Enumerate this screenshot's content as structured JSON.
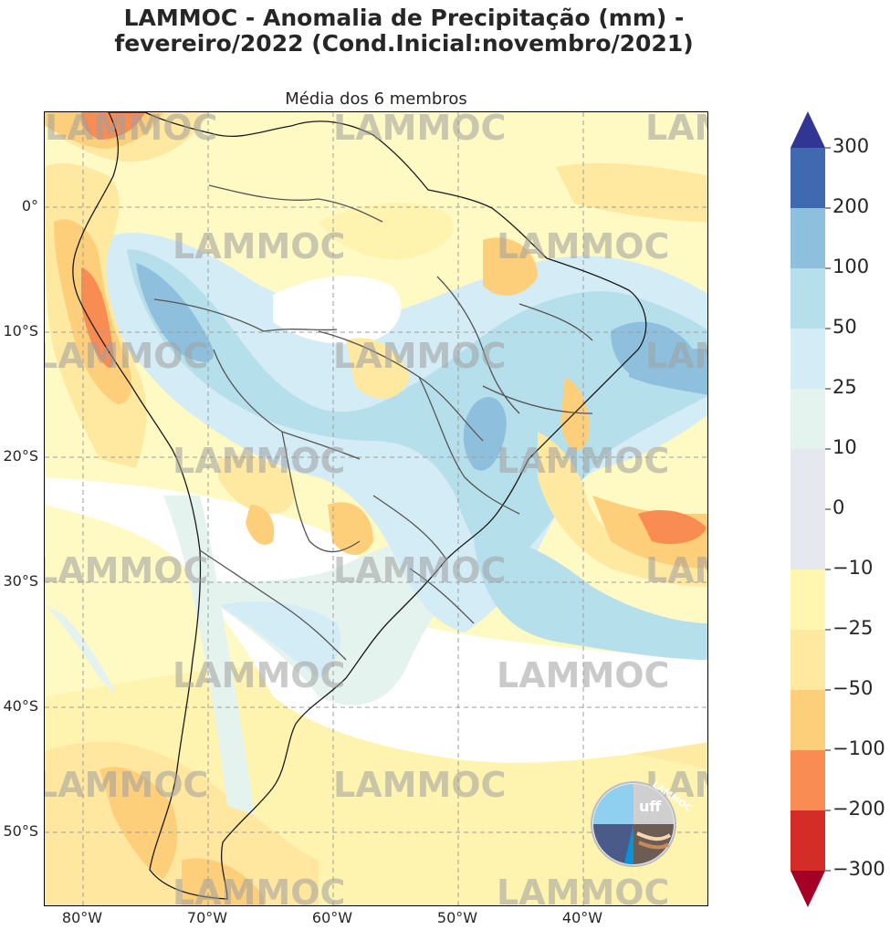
{
  "title_line1": "LAMMOC - Anomalia de Precipitação (mm) -",
  "title_line2": "fevereiro/2022 (Cond.Inicial:novembro/2021)",
  "subtitle": "Média dos 6 membros",
  "watermark": "LAMMOC",
  "logo_text": "LAMMOC",
  "logo_uff": "uff",
  "y_ticks": [
    "0°",
    "10°S",
    "20°S",
    "30°S",
    "40°S",
    "50°S"
  ],
  "x_ticks": [
    "80°W",
    "70°W",
    "60°W",
    "50°W",
    "40°W"
  ],
  "colorbar": {
    "labels": [
      "300",
      "200",
      "100",
      "50",
      "25",
      "10",
      "0",
      "−10",
      "−25",
      "−50",
      "−100",
      "−200",
      "−300"
    ],
    "colors": [
      "#313695",
      "#4169b0",
      "#8ec0de",
      "#b6dfec",
      "#d3ecf5",
      "#e5f3ee",
      "#e6e8f0",
      "#fff6b0",
      "#ffe8a0",
      "#fecf7a",
      "#f88c52",
      "#d42d28",
      "#a50026"
    ]
  }
}
